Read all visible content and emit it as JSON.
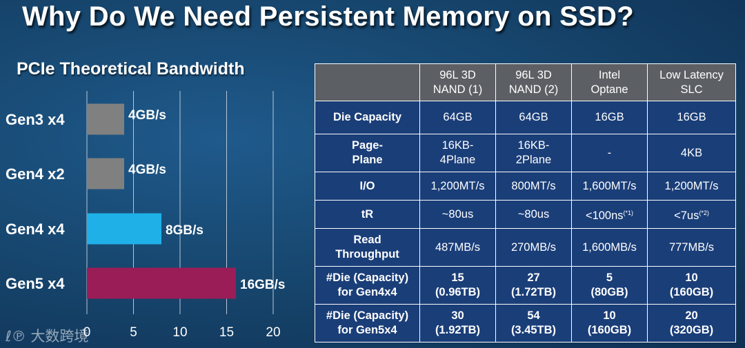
{
  "slide_title": "Why Do We Need Persistent Memory on SSD?",
  "chart_data": {
    "type": "bar",
    "orientation": "horizontal",
    "title": "PCIe Theoretical Bandwidth",
    "categories": [
      "Gen3 x4",
      "Gen4 x2",
      "Gen4 x4",
      "Gen5 x4"
    ],
    "values": [
      4,
      4,
      8,
      16
    ],
    "value_labels": [
      "4GB/s",
      "4GB/s",
      "8GB/s",
      "16GB/s"
    ],
    "bar_colors": [
      "#808080",
      "#808080",
      "#1fb0e8",
      "#9a1d57"
    ],
    "xlim": [
      0,
      20
    ],
    "x_ticks": [
      0,
      5,
      10,
      15,
      20
    ],
    "grid": true,
    "legend": "none"
  },
  "table": {
    "headers": [
      "",
      [
        "96L 3D",
        "NAND (1)"
      ],
      [
        "96L 3D",
        "NAND (2)"
      ],
      [
        "Intel",
        "Optane"
      ],
      [
        "Low Latency",
        "SLC"
      ]
    ],
    "rows": [
      {
        "label": [
          "Die Capacity"
        ],
        "cells": [
          [
            "64GB"
          ],
          [
            "64GB"
          ],
          [
            "16GB"
          ],
          [
            "16GB"
          ]
        ],
        "bold": false
      },
      {
        "label": [
          "Page-",
          "Plane"
        ],
        "cells": [
          [
            "16KB-",
            "4Plane"
          ],
          [
            "16KB-",
            "2Plane"
          ],
          [
            "-"
          ],
          [
            "4KB"
          ]
        ],
        "bold": false
      },
      {
        "label": [
          "I/O"
        ],
        "cells": [
          [
            "1,200MT/s"
          ],
          [
            "800MT/s"
          ],
          [
            "1,600MT/s"
          ],
          [
            "1,200MT/s"
          ]
        ],
        "bold": false
      },
      {
        "label": [
          "tR"
        ],
        "cells": [
          [
            "~80us"
          ],
          [
            "~80us"
          ],
          [
            "<100ns"
          ],
          [
            "<7us"
          ]
        ],
        "sups": [
          "",
          "",
          "(*1)",
          "(*2)"
        ],
        "bold": false
      },
      {
        "label": [
          "Read",
          "Throughput"
        ],
        "cells": [
          [
            "487MB/s"
          ],
          [
            "270MB/s"
          ],
          [
            "1,600MB/s"
          ],
          [
            "777MB/s"
          ]
        ],
        "bold": false
      },
      {
        "label": [
          "#Die (Capacity)",
          "for Gen4x4"
        ],
        "cells": [
          [
            "15",
            "(0.96TB)"
          ],
          [
            "27",
            "(1.72TB)"
          ],
          [
            "5",
            "(80GB)"
          ],
          [
            "10",
            "(160GB)"
          ]
        ],
        "bold": true
      },
      {
        "label": [
          "#Die (Capacity)",
          "for Gen5x4"
        ],
        "cells": [
          [
            "30",
            "(1.92TB)"
          ],
          [
            "54",
            "(3.45TB)"
          ],
          [
            "10",
            "(160GB)"
          ],
          [
            "20",
            "(320GB)"
          ]
        ],
        "bold": true
      }
    ]
  },
  "watermark": "ℓ℗ 大数跨境"
}
